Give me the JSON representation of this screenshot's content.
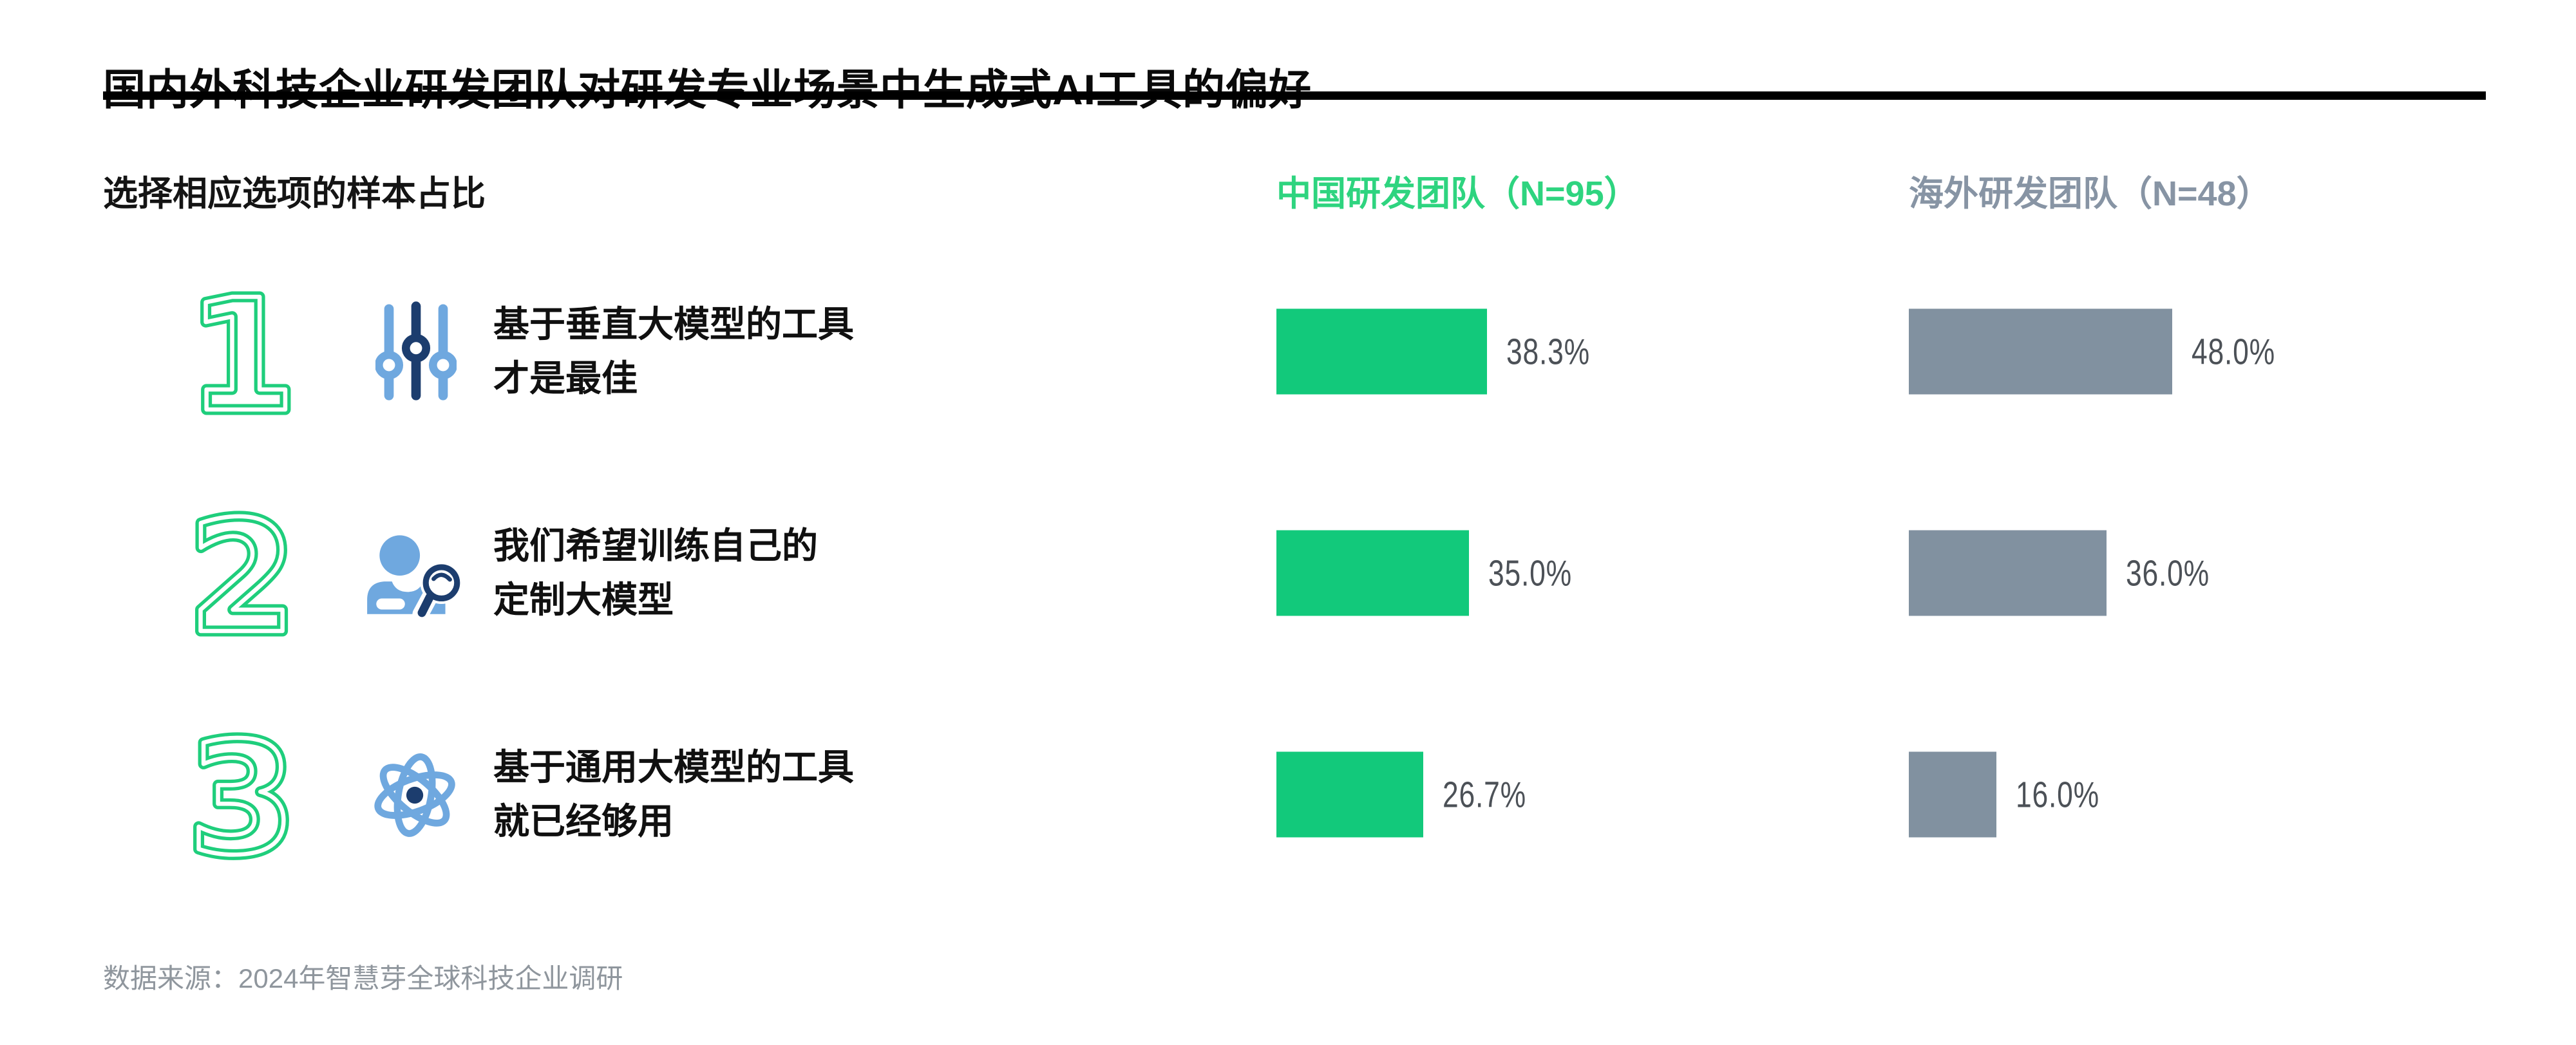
{
  "title": "国内外科技企业研发团队对研发专业场景中生成式AI工具的偏好",
  "subtitle": "选择相应选项的样本占比",
  "columns": {
    "china": {
      "label": "中国研发团队（N=95）",
      "color": "#12C97B",
      "header_color": "#2ED47F"
    },
    "overseas": {
      "label": "海外研发团队（N=48）",
      "color": "#8191A0",
      "header_color": "#8794A4"
    }
  },
  "rows": [
    {
      "rank": "1",
      "icon": "sliders-icon",
      "label_lines": [
        "基于垂直大模型的工具",
        "才是最佳"
      ],
      "china": {
        "pct": 38.3,
        "label": "38.3%"
      },
      "overseas": {
        "pct": 48.0,
        "label": "48.0%"
      }
    },
    {
      "rank": "2",
      "icon": "user-search-icon",
      "label_lines": [
        "我们希望训练自己的",
        "定制大模型"
      ],
      "china": {
        "pct": 35.0,
        "label": "35.0%"
      },
      "overseas": {
        "pct": 36.0,
        "label": "36.0%"
      }
    },
    {
      "rank": "3",
      "icon": "atom-icon",
      "label_lines": [
        "基于通用大模型的工具",
        "就已经够用"
      ],
      "china": {
        "pct": 26.7,
        "label": "26.7%"
      },
      "overseas": {
        "pct": 16.0,
        "label": "16.0%"
      }
    }
  ],
  "source": "数据来源：2024年智慧芽全球科技企业调研",
  "style_colors": {
    "rank_number_green": "#1FCE7C",
    "icon_light_blue": "#6FA8DF",
    "icon_navy": "#1C3D6E",
    "value_label_gray": "#4C5157",
    "source_gray": "#8F969D"
  },
  "chart_data": {
    "type": "bar",
    "orientation": "horizontal",
    "title": "国内外科技企业研发团队对研发专业场景中生成式AI工具的偏好",
    "xlabel": "选择相应选项的样本占比",
    "value_unit": "%",
    "categories": [
      "基于垂直大模型的工具才是最佳",
      "我们希望训练自己的定制大模型",
      "基于通用大模型的工具就已经够用"
    ],
    "series": [
      {
        "name": "中国研发团队（N=95）",
        "color": "#12C97B",
        "values": [
          38.3,
          35.0,
          26.7
        ]
      },
      {
        "name": "海外研发团队（N=48）",
        "color": "#8191A0",
        "values": [
          48.0,
          36.0,
          16.0
        ]
      }
    ],
    "data_labels": [
      "38.3%",
      "35.0%",
      "26.7%",
      "48.0%",
      "36.0%",
      "16.0%"
    ],
    "xlim": [
      0,
      100
    ],
    "grid": false,
    "legend_position": "top",
    "source": "数据来源：2024年智慧芽全球科技企业调研"
  }
}
